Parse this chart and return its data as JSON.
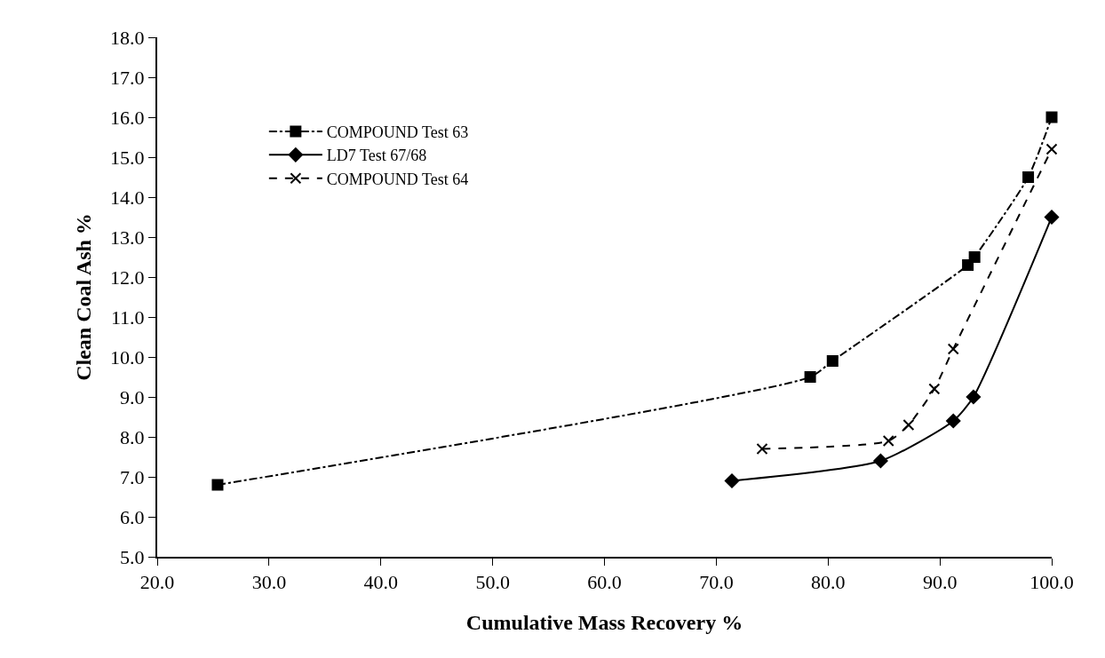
{
  "chart_data": {
    "type": "line",
    "xlabel": "Cumulative Mass Recovery %",
    "ylabel": "Clean Coal Ash %",
    "xlim": [
      20,
      100
    ],
    "xticks": [
      {
        "value": 20,
        "label": "20.0"
      },
      {
        "value": 30,
        "label": "30.0"
      },
      {
        "value": 40,
        "label": "40.0"
      },
      {
        "value": 50,
        "label": "50.0"
      },
      {
        "value": 60,
        "label": "60.0"
      },
      {
        "value": 70,
        "label": "70.0"
      },
      {
        "value": 80,
        "label": "80.0"
      },
      {
        "value": 90,
        "label": "90.0"
      },
      {
        "value": 100,
        "label": "100.0"
      }
    ],
    "ylim": [
      5,
      18
    ],
    "yticks": [
      {
        "value": 5,
        "label": "5.0"
      },
      {
        "value": 6,
        "label": "6.0"
      },
      {
        "value": 7,
        "label": "7.0"
      },
      {
        "value": 8,
        "label": "8.0"
      },
      {
        "value": 9,
        "label": "9.0"
      },
      {
        "value": 10,
        "label": "10.0"
      },
      {
        "value": 11,
        "label": "11.0"
      },
      {
        "value": 12,
        "label": "12.0"
      },
      {
        "value": 13,
        "label": "13.0"
      },
      {
        "value": 14,
        "label": "14.0"
      },
      {
        "value": 15,
        "label": "15.0"
      },
      {
        "value": 16,
        "label": "16.0"
      },
      {
        "value": 17,
        "label": "17.0"
      },
      {
        "value": 18,
        "label": "18.0"
      }
    ],
    "legend": "top left",
    "series": [
      {
        "name": "COMPOUND Test 63",
        "color": "#000000",
        "marker": "square",
        "line_style": "dashdot",
        "x": [
          25.4,
          78.4,
          80.4,
          92.5,
          93.1,
          97.9,
          100
        ],
        "values": [
          6.8,
          9.5,
          9.9,
          12.3,
          12.5,
          14.5,
          16.0
        ]
      },
      {
        "name": "LD7 Test 67/68",
        "color": "#000000",
        "marker": "diamond",
        "line_style": "solid",
        "x": [
          71.4,
          84.7,
          91.2,
          93.0,
          100
        ],
        "values": [
          6.9,
          7.4,
          8.4,
          9.0,
          13.5
        ]
      },
      {
        "name": "COMPOUND Test 64",
        "color": "#000000",
        "marker": "cross",
        "line_style": "dashed",
        "x": [
          74.1,
          85.4,
          87.2,
          89.5,
          91.2,
          100
        ],
        "values": [
          7.7,
          7.9,
          8.3,
          9.2,
          10.2,
          15.2
        ]
      }
    ]
  }
}
